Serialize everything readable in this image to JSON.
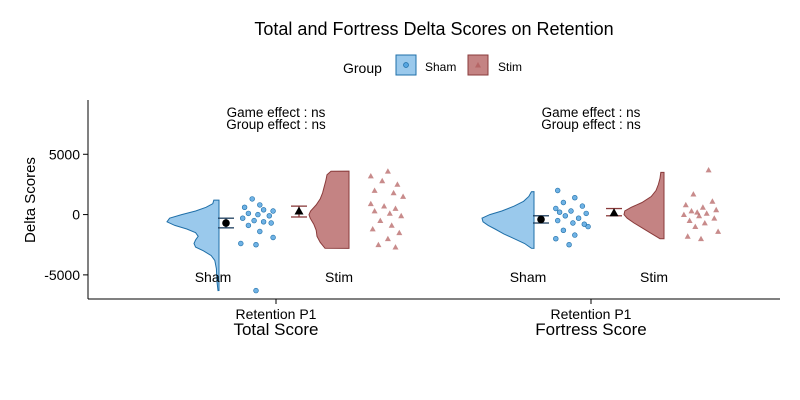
{
  "chart_data": {
    "type": "raincloud",
    "title": "Total and Fortress Delta Scores on Retention",
    "ylabel": "Delta Scores",
    "ylim": [
      -7000,
      9500
    ],
    "yticks": [
      -5000,
      0,
      5000
    ],
    "legend": {
      "title": "Group",
      "position": "top",
      "items": [
        {
          "name": "Sham",
          "color": "#56a5e0",
          "shape": "circle"
        },
        {
          "name": "Stim",
          "color": "#b05a5a",
          "shape": "triangle"
        }
      ]
    },
    "panels": [
      {
        "title": "Total Score",
        "x_label": "Retention P1",
        "annotations": [
          "Game effect : ns",
          "Group effect : ns"
        ],
        "groups": [
          {
            "name": "Sham",
            "mean": -700,
            "ci": [
              -1100,
              -300
            ],
            "density_min": -6300,
            "density_max": 1200,
            "density": [
              [
                1200,
                0.1
              ],
              [
                900,
                0.12
              ],
              [
                600,
                0.25
              ],
              [
                300,
                0.45
              ],
              [
                0,
                0.72
              ],
              [
                -300,
                0.95
              ],
              [
                -600,
                1.0
              ],
              [
                -900,
                0.85
              ],
              [
                -1200,
                0.62
              ],
              [
                -1500,
                0.45
              ],
              [
                -1800,
                0.4
              ],
              [
                -2100,
                0.45
              ],
              [
                -2400,
                0.48
              ],
              [
                -2700,
                0.45
              ],
              [
                -3000,
                0.3
              ],
              [
                -3400,
                0.15
              ],
              [
                -3800,
                0.08
              ],
              [
                -4500,
                0.05
              ],
              [
                -5500,
                0.04
              ],
              [
                -6300,
                0.02
              ]
            ],
            "points": [
              [
                -6300,
                0.5
              ],
              [
                1300,
                0.4
              ],
              [
                800,
                0.6
              ],
              [
                600,
                0.2
              ],
              [
                400,
                0.7
              ],
              [
                100,
                0.3
              ],
              [
                0,
                0.55
              ],
              [
                -100,
                0.85
              ],
              [
                -300,
                0.15
              ],
              [
                -500,
                0.45
              ],
              [
                -600,
                0.7
              ],
              [
                -700,
                0.9
              ],
              [
                -900,
                0.3
              ],
              [
                -1400,
                0.6
              ],
              [
                -2400,
                0.1
              ],
              [
                -2500,
                0.5
              ],
              [
                -1900,
                0.95
              ],
              [
                300,
                0.95
              ]
            ]
          },
          {
            "name": "Stim",
            "mean": 300,
            "ci": [
              -200,
              700
            ],
            "density_min": -2800,
            "density_max": 3600,
            "density": [
              [
                3600,
                0.45
              ],
              [
                3300,
                0.55
              ],
              [
                2800,
                0.58
              ],
              [
                2300,
                0.62
              ],
              [
                1800,
                0.66
              ],
              [
                1300,
                0.72
              ],
              [
                800,
                0.82
              ],
              [
                300,
                0.96
              ],
              [
                0,
                1.0
              ],
              [
                -300,
                0.97
              ],
              [
                -800,
                0.88
              ],
              [
                -1300,
                0.82
              ],
              [
                -1800,
                0.8
              ],
              [
                -2300,
                0.72
              ],
              [
                -2800,
                0.6
              ]
            ],
            "points": [
              [
                3600,
                0.55
              ],
              [
                3200,
                0.1
              ],
              [
                2800,
                0.4
              ],
              [
                2500,
                0.8
              ],
              [
                2000,
                0.2
              ],
              [
                1800,
                0.7
              ],
              [
                1500,
                0.95
              ],
              [
                900,
                0.1
              ],
              [
                700,
                0.45
              ],
              [
                500,
                0.75
              ],
              [
                300,
                0.2
              ],
              [
                100,
                0.6
              ],
              [
                -100,
                0.9
              ],
              [
                -500,
                0.35
              ],
              [
                -900,
                0.65
              ],
              [
                -1200,
                0.15
              ],
              [
                -1500,
                0.85
              ],
              [
                -2000,
                0.55
              ],
              [
                -2500,
                0.3
              ],
              [
                -2700,
                0.75
              ]
            ]
          }
        ]
      },
      {
        "title": "Fortress Score",
        "x_label": "Retention P1",
        "annotations": [
          "Game effect : ns",
          "Group effect : ns"
        ],
        "groups": [
          {
            "name": "Sham",
            "mean": -400,
            "ci": [
              -700,
              -100
            ],
            "density_min": -2800,
            "density_max": 1900,
            "density": [
              [
                1900,
                0.05
              ],
              [
                1500,
                0.1
              ],
              [
                1100,
                0.2
              ],
              [
                700,
                0.38
              ],
              [
                300,
                0.62
              ],
              [
                0,
                0.85
              ],
              [
                -300,
                1.0
              ],
              [
                -600,
                0.98
              ],
              [
                -900,
                0.88
              ],
              [
                -1200,
                0.75
              ],
              [
                -1600,
                0.58
              ],
              [
                -2000,
                0.38
              ],
              [
                -2400,
                0.18
              ],
              [
                -2800,
                0.05
              ]
            ],
            "points": [
              [
                2000,
                0.15
              ],
              [
                1400,
                0.6
              ],
              [
                1000,
                0.3
              ],
              [
                700,
                0.8
              ],
              [
                500,
                0.1
              ],
              [
                300,
                0.5
              ],
              [
                100,
                0.9
              ],
              [
                -100,
                0.35
              ],
              [
                -300,
                0.7
              ],
              [
                -500,
                0.15
              ],
              [
                -700,
                0.55
              ],
              [
                -1000,
                0.95
              ],
              [
                -1300,
                0.3
              ],
              [
                -1700,
                0.6
              ],
              [
                -2000,
                0.1
              ],
              [
                -2500,
                0.45
              ],
              [
                -800,
                0.85
              ],
              [
                200,
                0.2
              ]
            ]
          },
          {
            "name": "Stim",
            "mean": 150,
            "ci": [
              -100,
              500
            ],
            "density_min": -2000,
            "density_max": 3500,
            "density": [
              [
                3500,
                0.08
              ],
              [
                3000,
                0.1
              ],
              [
                2500,
                0.14
              ],
              [
                2000,
                0.2
              ],
              [
                1500,
                0.32
              ],
              [
                1000,
                0.55
              ],
              [
                600,
                0.82
              ],
              [
                300,
                0.98
              ],
              [
                0,
                1.0
              ],
              [
                -300,
                0.92
              ],
              [
                -700,
                0.75
              ],
              [
                -1100,
                0.55
              ],
              [
                -1500,
                0.35
              ],
              [
                -1800,
                0.2
              ],
              [
                -2000,
                0.1
              ]
            ],
            "points": [
              [
                3700,
                0.7
              ],
              [
                1700,
                0.3
              ],
              [
                1100,
                0.8
              ],
              [
                800,
                0.1
              ],
              [
                600,
                0.55
              ],
              [
                400,
                0.9
              ],
              [
                300,
                0.25
              ],
              [
                100,
                0.65
              ],
              [
                0,
                0.05
              ],
              [
                -100,
                0.45
              ],
              [
                -300,
                0.85
              ],
              [
                -500,
                0.2
              ],
              [
                -700,
                0.6
              ],
              [
                -1000,
                0.35
              ],
              [
                -1400,
                0.95
              ],
              [
                -1800,
                0.15
              ],
              [
                -2000,
                0.5
              ],
              [
                200,
                0.4
              ]
            ]
          }
        ]
      }
    ]
  }
}
